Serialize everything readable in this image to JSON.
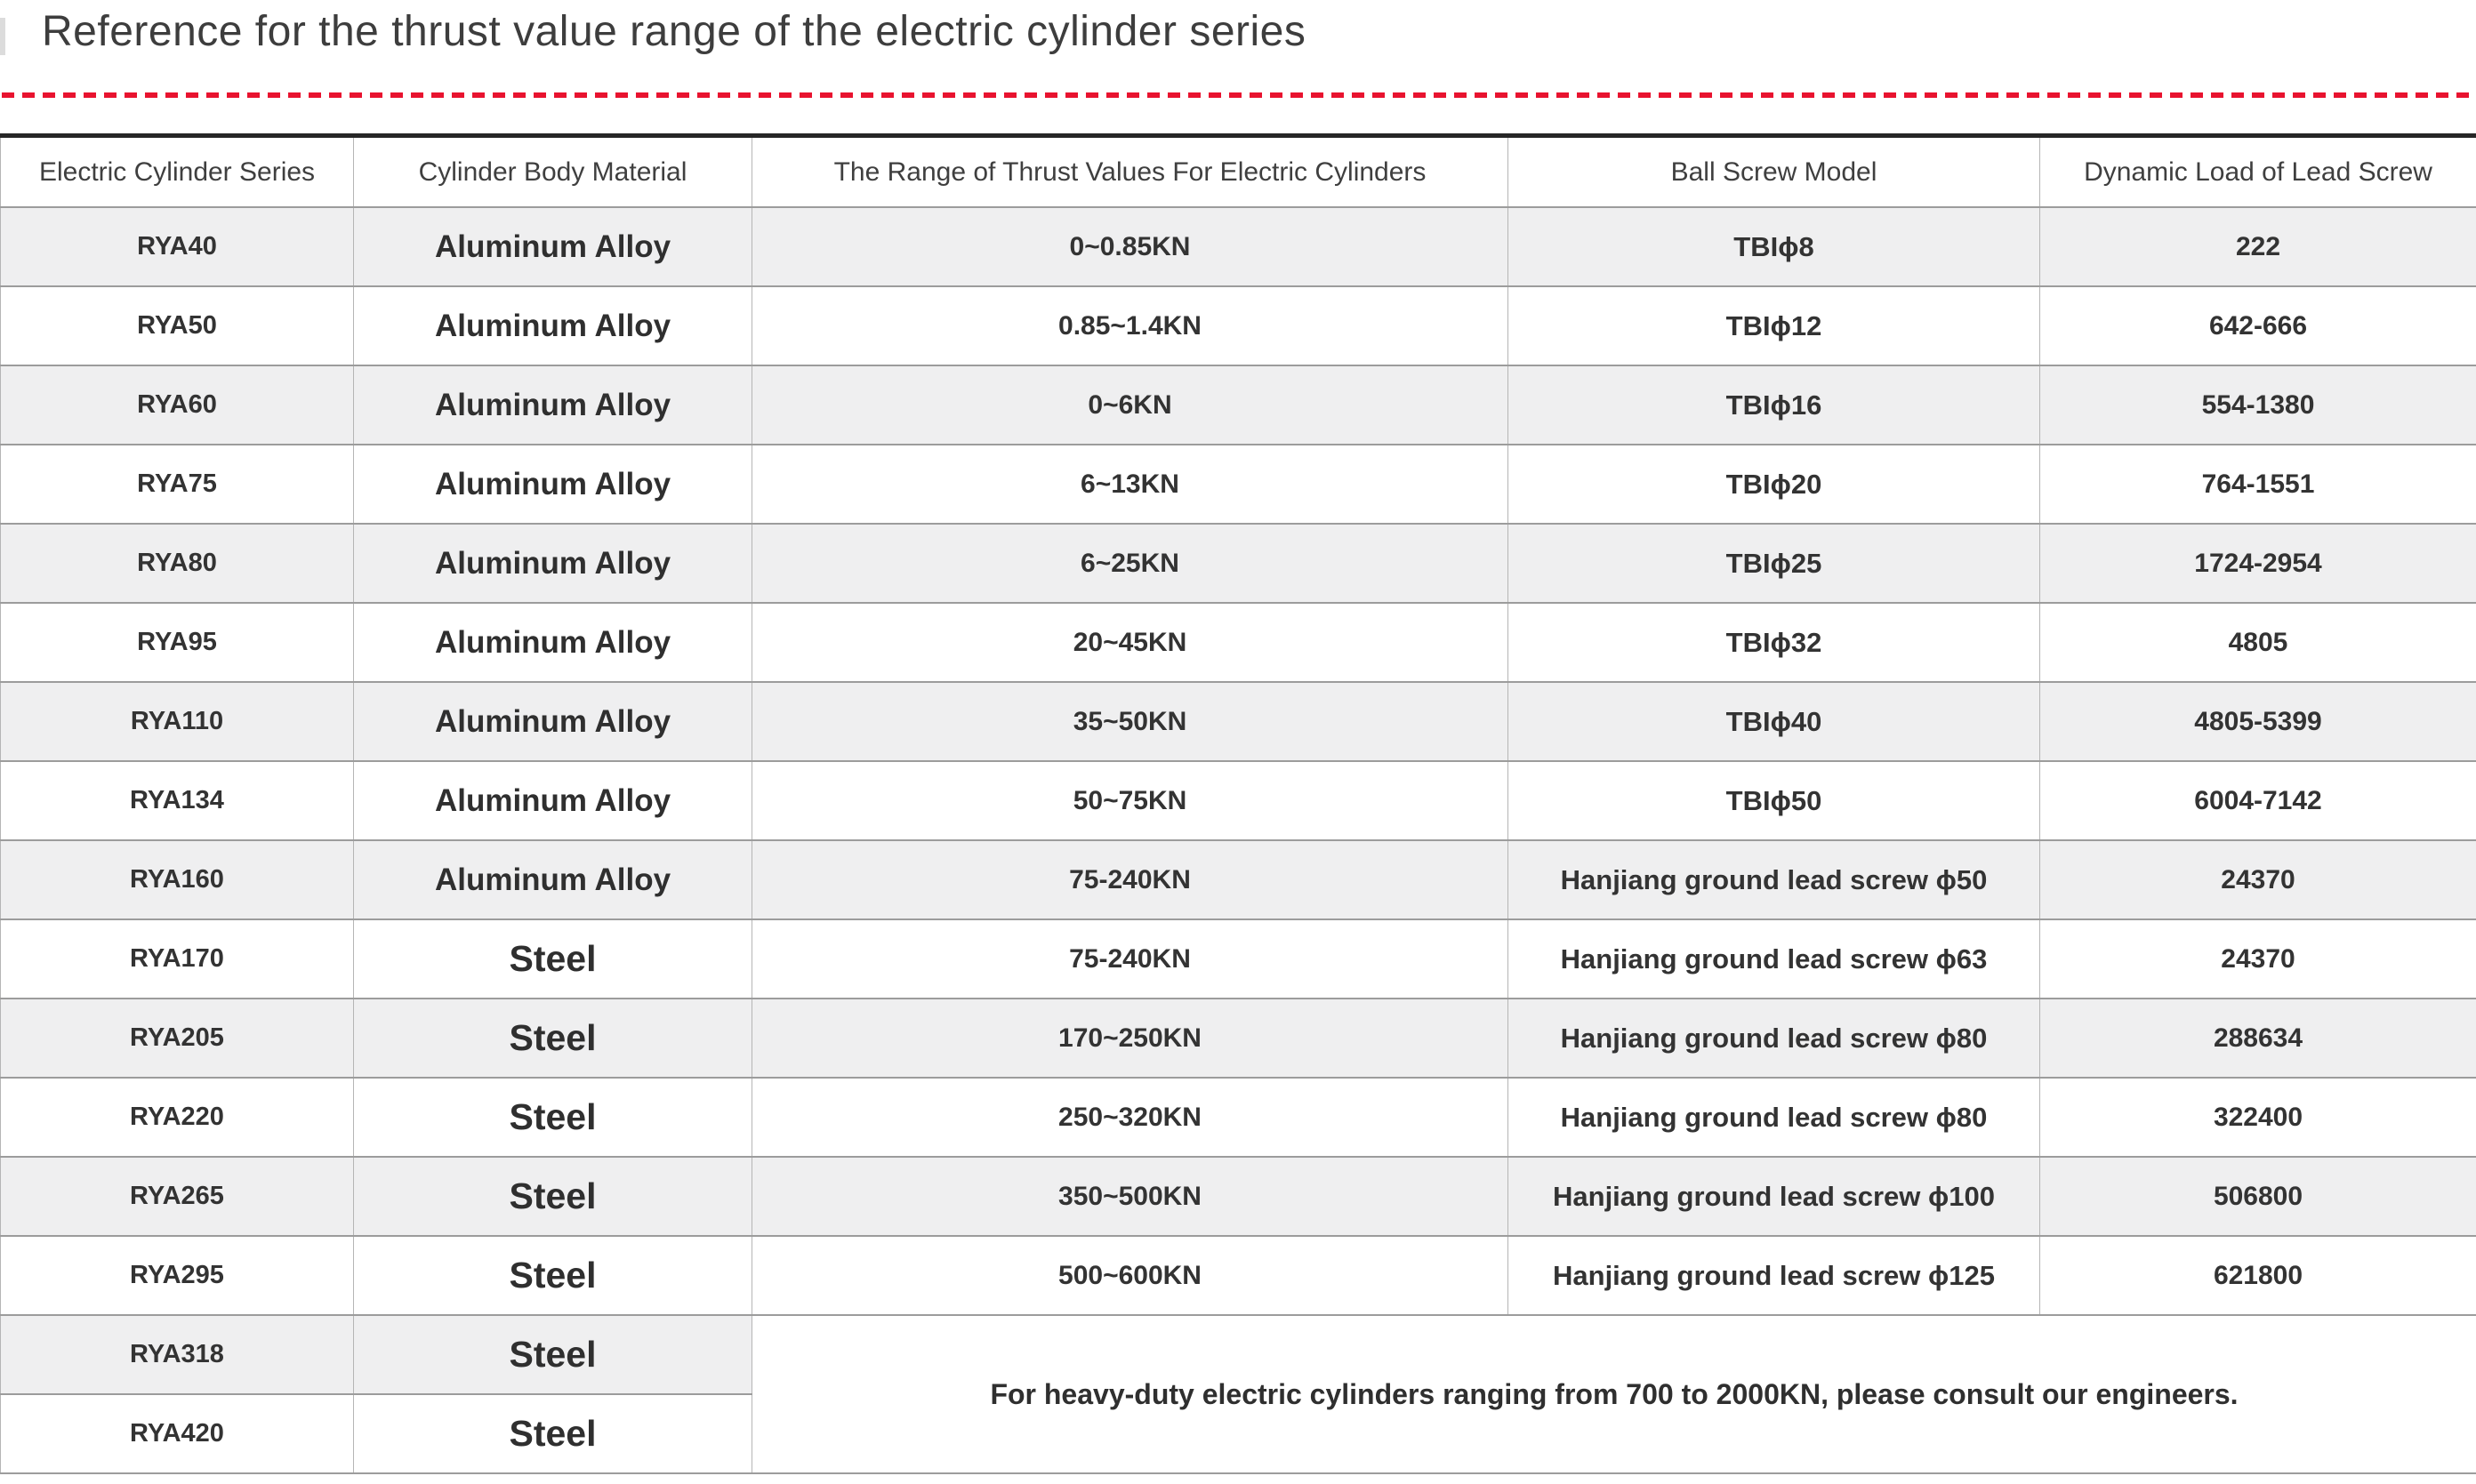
{
  "page": {
    "title": "Reference for the thrust value range of the electric cylinder series",
    "accent_color": "#e8132f",
    "stripe_color": "#efeff0"
  },
  "table": {
    "headers": [
      "Electric Cylinder Series",
      "Cylinder Body Material",
      "The Range of Thrust Values For Electric Cylinders",
      "Ball Screw Model",
      "Dynamic Load of Lead Screw"
    ],
    "rows": [
      {
        "series": "RYA40",
        "material": "Aluminum Alloy",
        "thrust": "0~0.85KN",
        "screw": "TBIϕ8",
        "load": "222"
      },
      {
        "series": "RYA50",
        "material": "Aluminum Alloy",
        "thrust": "0.85~1.4KN",
        "screw": "TBIϕ12",
        "load": "642-666"
      },
      {
        "series": "RYA60",
        "material": "Aluminum Alloy",
        "thrust": "0~6KN",
        "screw": "TBIϕ16",
        "load": "554-1380"
      },
      {
        "series": "RYA75",
        "material": "Aluminum Alloy",
        "thrust": "6~13KN",
        "screw": "TBIϕ20",
        "load": "764-1551"
      },
      {
        "series": "RYA80",
        "material": "Aluminum Alloy",
        "thrust": "6~25KN",
        "screw": "TBIϕ25",
        "load": "1724-2954"
      },
      {
        "series": "RYA95",
        "material": "Aluminum Alloy",
        "thrust": "20~45KN",
        "screw": "TBIϕ32",
        "load": "4805"
      },
      {
        "series": "RYA110",
        "material": "Aluminum Alloy",
        "thrust": "35~50KN",
        "screw": "TBIϕ40",
        "load": "4805-5399"
      },
      {
        "series": "RYA134",
        "material": "Aluminum Alloy",
        "thrust": "50~75KN",
        "screw": "TBIϕ50",
        "load": "6004-7142"
      },
      {
        "series": "RYA160",
        "material": "Aluminum Alloy",
        "thrust": "75-240KN",
        "screw": "Hanjiang ground lead screw ϕ50",
        "load": "24370"
      },
      {
        "series": "RYA170",
        "material": "Steel",
        "thrust": "75-240KN",
        "screw": "Hanjiang ground lead screw ϕ63",
        "load": "24370"
      },
      {
        "series": "RYA205",
        "material": "Steel",
        "thrust": "170~250KN",
        "screw": "Hanjiang ground lead screw ϕ80",
        "load": "288634"
      },
      {
        "series": "RYA220",
        "material": "Steel",
        "thrust": "250~320KN",
        "screw": "Hanjiang ground lead screw ϕ80",
        "load": "322400"
      },
      {
        "series": "RYA265",
        "material": "Steel",
        "thrust": "350~500KN",
        "screw": "Hanjiang ground lead screw ϕ100",
        "load": "506800"
      },
      {
        "series": "RYA295",
        "material": "Steel",
        "thrust": "500~600KN",
        "screw": "Hanjiang ground lead screw ϕ125",
        "load": "621800"
      },
      {
        "series": "RYA318",
        "material": "Steel",
        "note_cell": true
      },
      {
        "series": "RYA420",
        "material": "Steel"
      }
    ],
    "note": "For heavy-duty electric cylinders ranging from 700 to 2000KN, please consult our engineers."
  }
}
